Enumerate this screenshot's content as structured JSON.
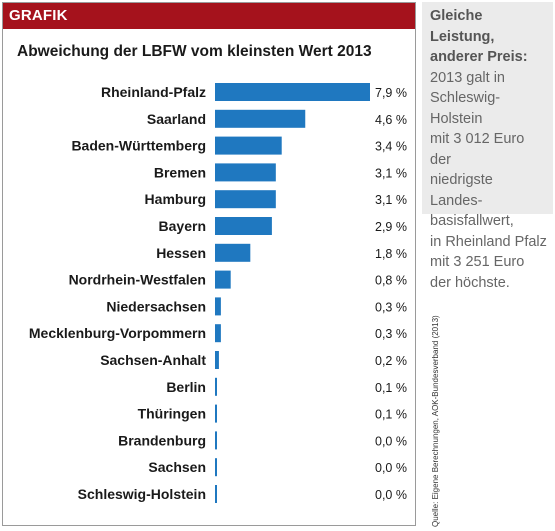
{
  "header": {
    "label": "GRAFIK"
  },
  "side_note": {
    "heading": "Gleiche Leistung, anderer Preis:",
    "text": "2013 galt in\nSchleswig-Holstein\nmit 3 012 Euro der\nniedrigste Landes-\nbasisfallwert,\nin Rheinland Pfalz\nmit 3 251 Euro\nder höchste."
  },
  "source": "Quelle: Eigene Berechnungen, AOK-Bundesverband (2013)",
  "colors": {
    "bar": "#1f78c0",
    "header": "#a5121c",
    "side_bg": "#ebebeb"
  },
  "chart_data": {
    "type": "bar",
    "orientation": "horizontal",
    "title": "Abweichung der LBFW vom kleinsten Wert 2013",
    "categories": [
      "Rheinland-Pfalz",
      "Saarland",
      "Baden-Württemberg",
      "Bremen",
      "Hamburg",
      "Bayern",
      "Hessen",
      "Nordrhein-Westfalen",
      "Niedersachsen",
      "Mecklenburg-Vorpommern",
      "Sachsen-Anhalt",
      "Berlin",
      "Thüringen",
      "Brandenburg",
      "Sachsen",
      "Schleswig-Holstein"
    ],
    "values": [
      7.9,
      4.6,
      3.4,
      3.1,
      3.1,
      2.9,
      1.8,
      0.8,
      0.3,
      0.3,
      0.2,
      0.1,
      0.1,
      0.0,
      0.0,
      0.0
    ],
    "value_labels": [
      "7,9 %",
      "4,6 %",
      "3,4 %",
      "3,1 %",
      "3,1 %",
      "2,9 %",
      "1,8 %",
      "0,8 %",
      "0,3 %",
      "0,3 %",
      "0,2 %",
      "0,1 %",
      "0,1 %",
      "0,0 %",
      "0,0 %",
      "0,0 %"
    ],
    "xlabel": "",
    "ylabel": "",
    "xlim": [
      0,
      7.9
    ],
    "grid": false,
    "legend": "none"
  }
}
